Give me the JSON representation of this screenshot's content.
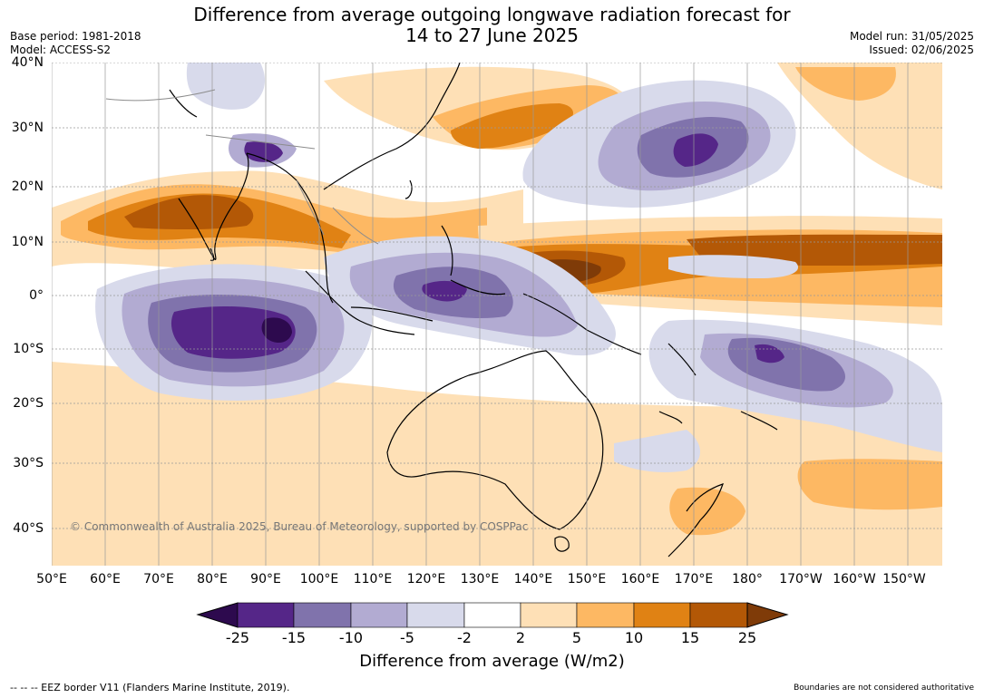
{
  "title": {
    "line1": "Difference from average outgoing longwave radiation forecast for",
    "line2": "14 to 27 June 2025"
  },
  "meta": {
    "base_period": "Base period: 1981-2018",
    "model": "Model: ACCESS-S2",
    "model_run": "Model run: 31/05/2025",
    "issued": "Issued: 02/06/2025"
  },
  "map": {
    "lat_labels": [
      "40°N",
      "30°N",
      "20°N",
      "10°N",
      "0°",
      "10°S",
      "20°S",
      "30°S",
      "40°S"
    ],
    "lon_labels": [
      "50°E",
      "60°E",
      "70°E",
      "80°E",
      "90°E",
      "100°E",
      "110°E",
      "120°E",
      "130°E",
      "140°E",
      "150°E",
      "160°E",
      "170°E",
      "180°",
      "170°W",
      "160°W",
      "150°W"
    ],
    "copyright": "© Commonwealth of Australia 2025, Bureau of Meteorology, supported by COSPPac",
    "palette": {
      "neg25_plus": "#2d0a4e",
      "neg25_neg15": "#552688",
      "neg15_neg10": "#8073ac",
      "neg10_neg5": "#b2abd2",
      "neg5_neg2": "#d8daeb",
      "neg2_pos2": "#ffffff",
      "pos2_pos5": "#fee0b6",
      "pos5_pos10": "#fdb863",
      "pos10_pos15": "#e08214",
      "pos15_pos25": "#b35806",
      "pos25_plus": "#7f3b08",
      "land_outline": "#000000",
      "border": "#8c8c8c",
      "grid": "#999999"
    }
  },
  "legend": {
    "ticks": [
      "-25",
      "-15",
      "-10",
      "-5",
      "-2",
      "2",
      "5",
      "10",
      "15",
      "25"
    ],
    "title": "Difference from average (W/m2)",
    "colors": [
      "#2d0a4e",
      "#552688",
      "#8073ac",
      "#b2abd2",
      "#d8daeb",
      "#ffffff",
      "#fee0b6",
      "#fdb863",
      "#e08214",
      "#b35806",
      "#7f3b08"
    ]
  },
  "footer": {
    "eez_note": "--  --  -- EEZ border V11 (Flanders Marine Institute, 2019).",
    "boundary_note": "Boundaries are not considered authoritative"
  }
}
